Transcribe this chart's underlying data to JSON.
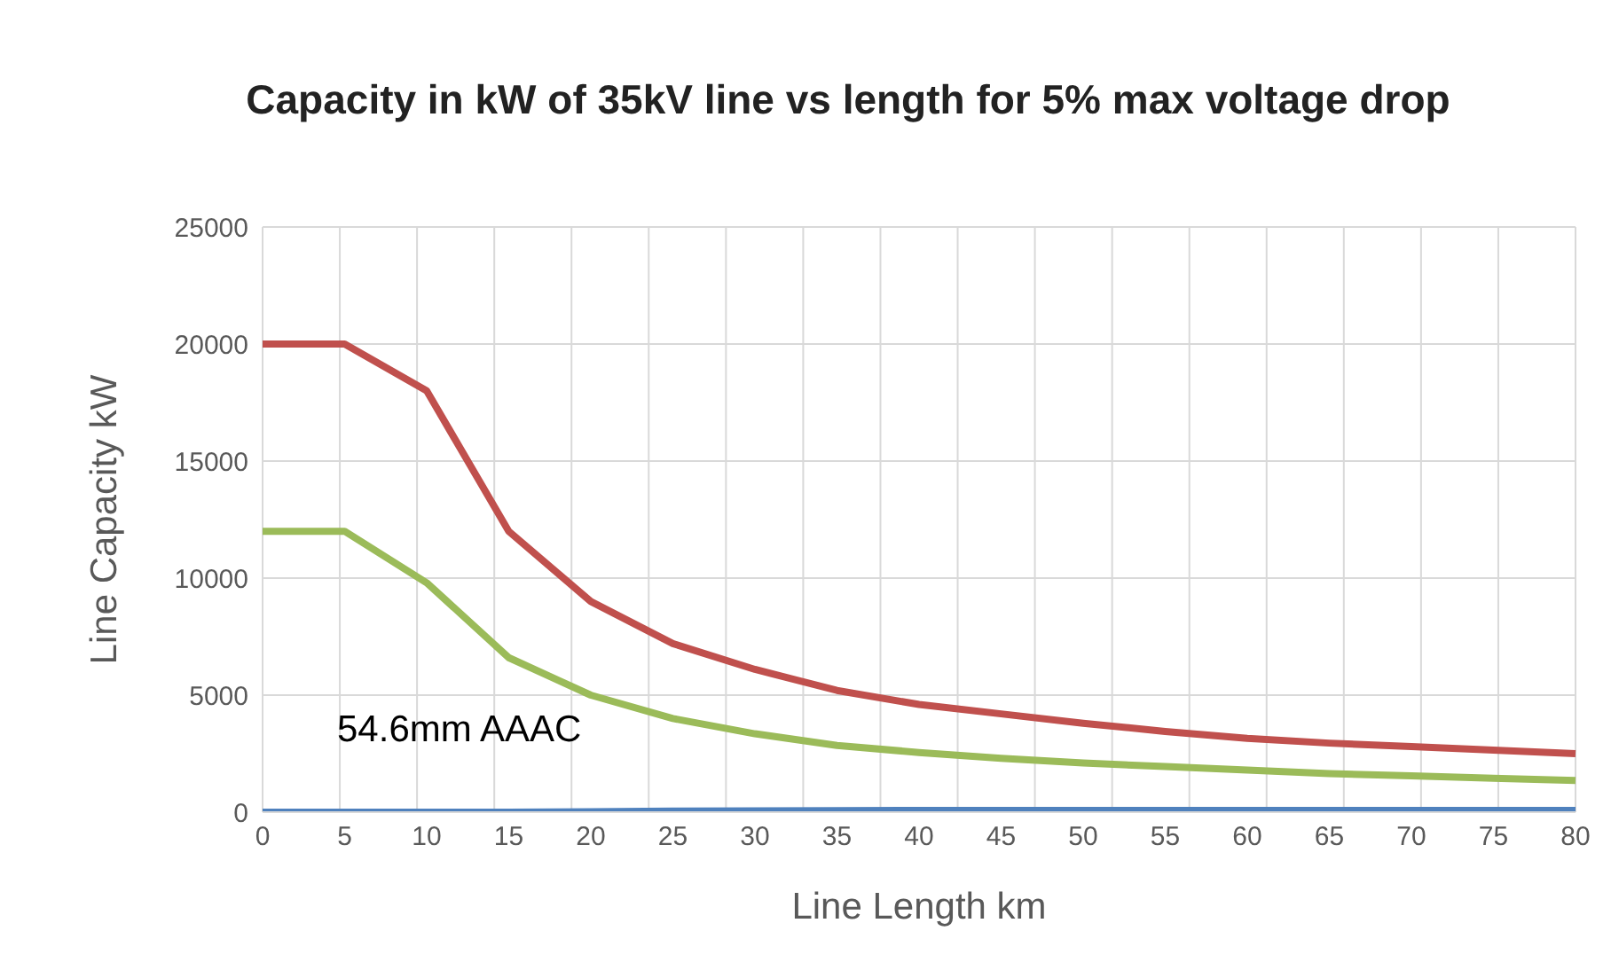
{
  "chart_data": {
    "type": "line",
    "title": "Capacity in kW of 35kV line vs length for 5% max voltage drop",
    "xlabel": "Line Length km",
    "ylabel": "Line Capacity kW",
    "categories": [
      "0",
      "5",
      "10",
      "15",
      "20",
      "25",
      "30",
      "35",
      "40",
      "45",
      "50",
      "55",
      "60",
      "65",
      "70",
      "75",
      "80"
    ],
    "series": [
      {
        "color": "#c0504d",
        "values": [
          20000,
          20000,
          18000,
          12000,
          9000,
          7200,
          6100,
          5200,
          4600,
          4200,
          3800,
          3450,
          3150,
          2950,
          2800,
          2650,
          2500
        ]
      },
      {
        "color": "#9bbb59",
        "values": [
          12000,
          12000,
          9800,
          6600,
          5000,
          4000,
          3350,
          2850,
          2550,
          2300,
          2100,
          1950,
          1800,
          1650,
          1550,
          1450,
          1350
        ]
      },
      {
        "color": "#4f81bd",
        "values": [
          0,
          0,
          0,
          0,
          20,
          50,
          60,
          70,
          80,
          80,
          80,
          80,
          80,
          80,
          80,
          80,
          80
        ]
      }
    ],
    "ylim": [
      0,
      25000
    ],
    "yticks": [
      0,
      5000,
      10000,
      15000,
      20000,
      25000
    ],
    "grid": true,
    "legend": false,
    "marker": "none",
    "line_style": "solid",
    "annotations": [
      "54.6mm AAAC"
    ]
  }
}
